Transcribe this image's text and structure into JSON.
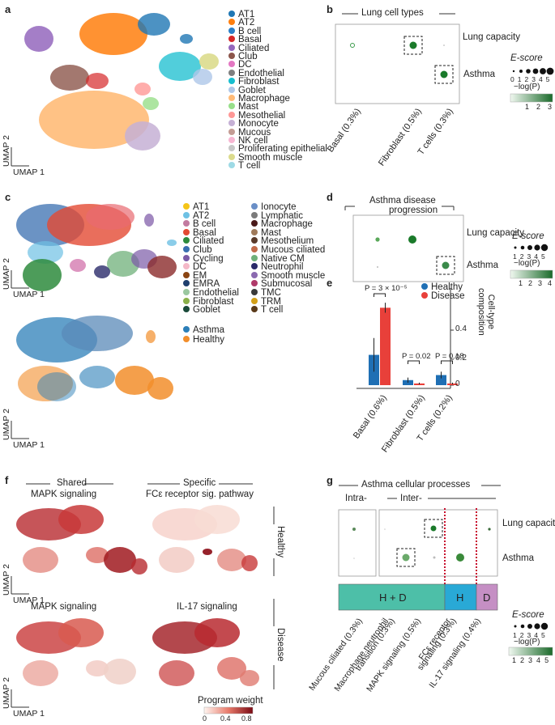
{
  "panels": {
    "a": "a",
    "b": "b",
    "c": "c",
    "d": "d",
    "e": "e",
    "f": "f",
    "g": "g"
  },
  "panel_a": {
    "axis_x": "UMAP 1",
    "axis_y": "UMAP 2",
    "legend": [
      {
        "label": "AT1",
        "color": "#1f77b4"
      },
      {
        "label": "AT2",
        "color": "#ff7f0e"
      },
      {
        "label": "B cell",
        "color": "#2b7fc8"
      },
      {
        "label": "Basal",
        "color": "#d62728"
      },
      {
        "label": "Ciliated",
        "color": "#9467bd"
      },
      {
        "label": "Club",
        "color": "#8c564b"
      },
      {
        "label": "DC",
        "color": "#e377c2"
      },
      {
        "label": "Endothelial",
        "color": "#7f7f7f"
      },
      {
        "label": "Fibroblast",
        "color": "#17becf"
      },
      {
        "label": "Goblet",
        "color": "#aec7e8"
      },
      {
        "label": "Macrophage",
        "color": "#ffbb78"
      },
      {
        "label": "Mast",
        "color": "#98df8a"
      },
      {
        "label": "Mesothelial",
        "color": "#ff9896"
      },
      {
        "label": "Monocyte",
        "color": "#c5b0d5"
      },
      {
        "label": "Mucous",
        "color": "#c49c94"
      },
      {
        "label": "NK cell",
        "color": "#f7b6d2"
      },
      {
        "label": "Proliferating epithelial",
        "color": "#c7c7c7"
      },
      {
        "label": "Smooth muscle",
        "color": "#dbdb8d"
      },
      {
        "label": "T cell",
        "color": "#9edae5"
      }
    ]
  },
  "panel_b": {
    "title": "Lung cell types",
    "rows": [
      "Lung capacity",
      "Asthma"
    ],
    "cols": [
      "Basal (0.3%)",
      "Fibroblast (0.5%)",
      "T cells (0.3%)"
    ],
    "escore_label": "E-score",
    "escore_ticks": [
      "0",
      "1",
      "2",
      "3",
      "4",
      "5"
    ],
    "logp_label": "−log(P)",
    "logp_ticks": [
      "1",
      "2",
      "3"
    ]
  },
  "panel_c": {
    "axis_x": "UMAP 1",
    "axis_y": "UMAP 2",
    "legend_left": [
      {
        "label": "AT1",
        "color": "#f5c518"
      },
      {
        "label": "AT2",
        "color": "#6ec1e4"
      },
      {
        "label": "B cell",
        "color": "#c27ba0"
      },
      {
        "label": "Basal",
        "color": "#e34a33"
      },
      {
        "label": "Ciliated",
        "color": "#2e8b3d"
      },
      {
        "label": "Club",
        "color": "#3a6fb0"
      },
      {
        "label": "Cycling",
        "color": "#7b5aa6"
      },
      {
        "label": "DC",
        "color": "#f4b8c8"
      },
      {
        "label": "EM",
        "color": "#8b4513"
      },
      {
        "label": "EMRA",
        "color": "#1f3f6e"
      },
      {
        "label": "Endothelial",
        "color": "#9bc8a0"
      },
      {
        "label": "Fibroblast",
        "color": "#8ab04a"
      },
      {
        "label": "Goblet",
        "color": "#1a4a3a"
      }
    ],
    "legend_right": [
      {
        "label": "Ionocyte",
        "color": "#6a8fc7"
      },
      {
        "label": "Lymphatic",
        "color": "#7b7b7b"
      },
      {
        "label": "Macrophage",
        "color": "#4a1a1a"
      },
      {
        "label": "Mast",
        "color": "#a07a5a"
      },
      {
        "label": "Mesothelium",
        "color": "#5a3a2a"
      },
      {
        "label": "Mucous ciliated",
        "color": "#c26b4a"
      },
      {
        "label": "Native CM",
        "color": "#6fb07a"
      },
      {
        "label": "Neutrophil",
        "color": "#2a2a6a"
      },
      {
        "label": "Smooth muscle",
        "color": "#8b6ab0"
      },
      {
        "label": "Submucosal",
        "color": "#b03a6a"
      },
      {
        "label": "TMC",
        "color": "#3a3a3a"
      },
      {
        "label": "TRM",
        "color": "#d4a017"
      },
      {
        "label": "T cell",
        "color": "#5a3a1a"
      }
    ],
    "condition_legend": [
      {
        "label": "Asthma",
        "color": "#2c7fb8"
      },
      {
        "label": "Healthy",
        "color": "#f28e2b"
      }
    ]
  },
  "panel_d": {
    "title_line1": "Asthma disease",
    "title_line2": "progression",
    "rows": [
      "Lung capacity",
      "Asthma"
    ],
    "escore_label": "E-score",
    "escore_ticks": [
      "1",
      "2",
      "3",
      "4",
      "5"
    ],
    "logp_label": "−log(P)",
    "logp_ticks": [
      "1",
      "2",
      "3",
      "4"
    ]
  },
  "panel_e": {
    "legend": [
      {
        "label": "Healthy",
        "color": "#1f6fb4"
      },
      {
        "label": "Disease",
        "color": "#e8403a"
      }
    ],
    "pvalues": [
      "P = 3 × 10⁻⁵",
      "P = 0.02",
      "P = 0.18"
    ],
    "ylabel_line1": "Cell-type",
    "ylabel_line2": "composition",
    "yticks": [
      "0",
      "0.2",
      "0.4"
    ]
  },
  "chart_data": {
    "type": "bar",
    "title": "Cell-type composition",
    "categories": [
      "Basal (0.6%)",
      "Fibroblast (0.5%)",
      "T cells (0.2%)"
    ],
    "series": [
      {
        "name": "Healthy",
        "values": [
          0.18,
          0.03,
          0.06
        ],
        "errors": [
          0.1,
          0.015,
          0.02
        ]
      },
      {
        "name": "Disease",
        "values": [
          0.46,
          0.01,
          0.01
        ],
        "errors": [
          0.03,
          0.005,
          0.005
        ]
      }
    ],
    "ylabel": "Cell-type composition",
    "ylim": [
      0,
      0.5
    ]
  },
  "panel_f": {
    "shared": "Shared",
    "specific": "Specific",
    "titles": [
      "MAPK signaling",
      "FCε receptor sig. pathway",
      "MAPK signaling",
      "IL-17 signaling"
    ],
    "healthy": "Healthy",
    "disease": "Disease",
    "axis_x": "UMAP 1",
    "axis_y": "UMAP 2",
    "cbar_label": "Program weight",
    "cbar_ticks": [
      "0",
      "0.4",
      "0.8"
    ]
  },
  "panel_g": {
    "title": "Asthma cellular processes",
    "intra": "Intra-",
    "inter": "Inter-",
    "rows": [
      "Lung capacity",
      "Asthma"
    ],
    "blocks": [
      {
        "label": "H + D",
        "color": "#4dbfa8"
      },
      {
        "label": "H",
        "color": "#29a9d6"
      },
      {
        "label": "D",
        "color": "#c58fc4"
      }
    ],
    "cols": [
      "Mucous ciliated (0.3%)",
      "Macrophage neutrophil",
      "transition (0.3%)",
      "MAPK signaling (0.5%)",
      "FCε receptor",
      "signaling (0.3%)",
      "IL-17 signaling (0.4%)"
    ],
    "escore_label": "E-score",
    "escore_ticks": [
      "1",
      "2",
      "3",
      "4",
      "5"
    ],
    "logp_label": "−log(P)",
    "logp_ticks": [
      "1",
      "2",
      "3",
      "4",
      "5"
    ]
  }
}
